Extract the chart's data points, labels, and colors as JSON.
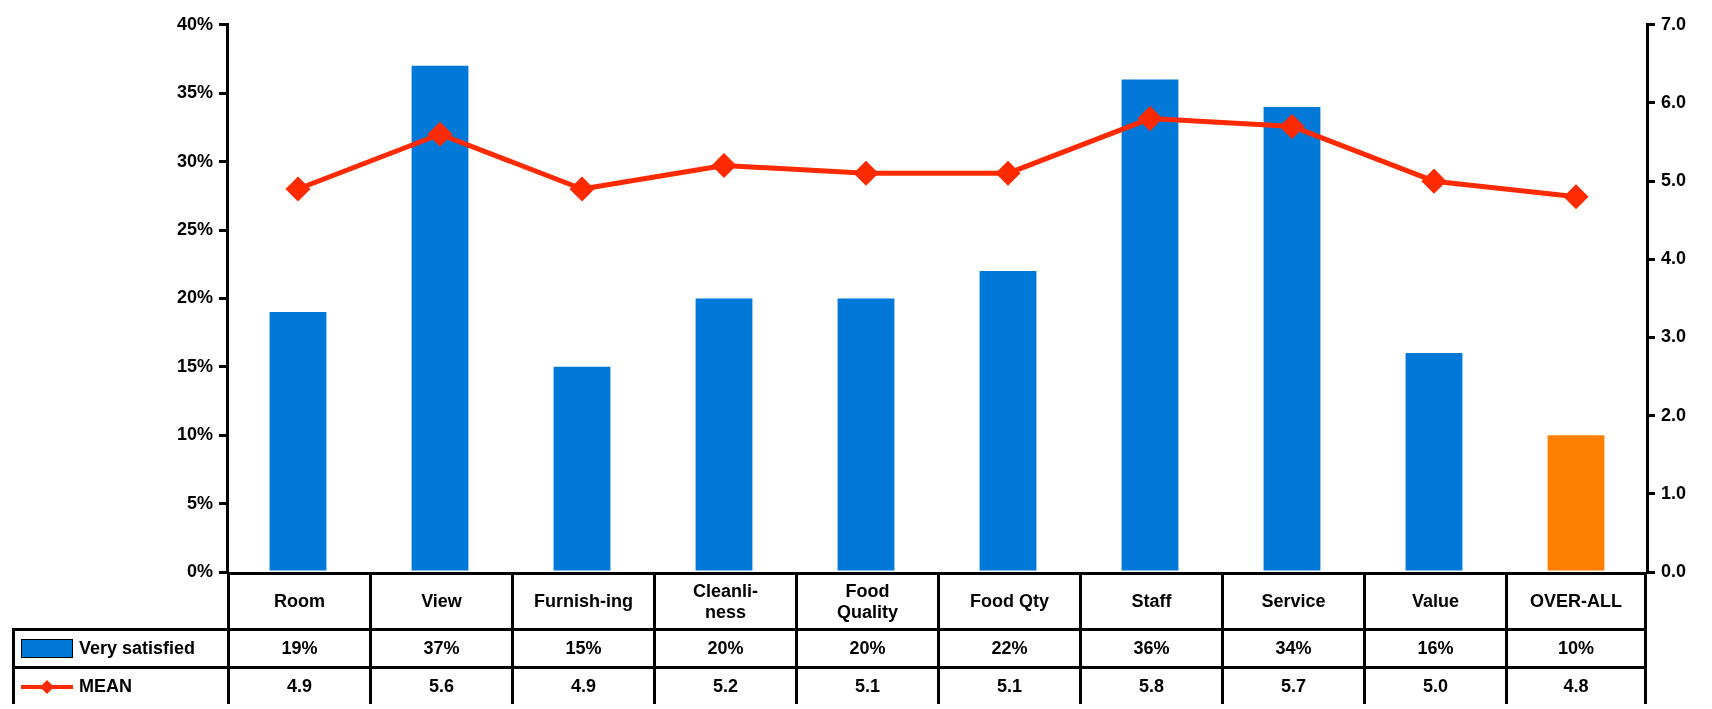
{
  "chart_data": {
    "type": "bar",
    "categories": [
      "Room",
      "View",
      "Furnish-ing",
      "Cleanli-\nness",
      "Food\nQuality",
      "Food Qty",
      "Staff",
      "Service",
      "Value",
      "OVER-ALL"
    ],
    "series": [
      {
        "name": "Very satisfied",
        "color": "#0078d7",
        "colors": [
          "#0078d7",
          "#0078d7",
          "#0078d7",
          "#0078d7",
          "#0078d7",
          "#0078d7",
          "#0078d7",
          "#0078d7",
          "#0078d7",
          "#ff7f00"
        ],
        "values": [
          19,
          37,
          15,
          20,
          20,
          22,
          36,
          34,
          16,
          10
        ],
        "value_labels": [
          "19%",
          "37%",
          "15%",
          "20%",
          "20%",
          "22%",
          "36%",
          "34%",
          "16%",
          "10%"
        ]
      },
      {
        "type": "line",
        "name": "MEAN",
        "color": "#ff2a00",
        "axis": "y2",
        "marker": "diamond",
        "values": [
          4.9,
          5.6,
          4.9,
          5.2,
          5.1,
          5.1,
          5.8,
          5.7,
          5.0,
          4.8
        ],
        "value_labels": [
          "4.9",
          "5.6",
          "4.9",
          "5.2",
          "5.1",
          "5.1",
          "5.8",
          "5.7",
          "5.0",
          "4.8"
        ]
      }
    ],
    "ylim": [
      0,
      40
    ],
    "yticks": [
      {
        "value": 0,
        "label": "0%"
      },
      {
        "value": 5,
        "label": "5%"
      },
      {
        "value": 10,
        "label": "10%"
      },
      {
        "value": 15,
        "label": "15%"
      },
      {
        "value": 20,
        "label": "20%"
      },
      {
        "value": 25,
        "label": "25%"
      },
      {
        "value": 30,
        "label": "30%"
      },
      {
        "value": 35,
        "label": "35%"
      },
      {
        "value": 40,
        "label": "40%"
      }
    ],
    "y2lim": [
      0,
      7
    ],
    "y2ticks": [
      {
        "value": 0,
        "label": "0.0"
      },
      {
        "value": 1,
        "label": "1.0"
      },
      {
        "value": 2,
        "label": "2.0"
      },
      {
        "value": 3,
        "label": "3.0"
      },
      {
        "value": 4,
        "label": "4.0"
      },
      {
        "value": 5,
        "label": "5.0"
      },
      {
        "value": 6,
        "label": "6.0"
      },
      {
        "value": 7,
        "label": "7.0"
      }
    ],
    "legend": "bottom left"
  }
}
